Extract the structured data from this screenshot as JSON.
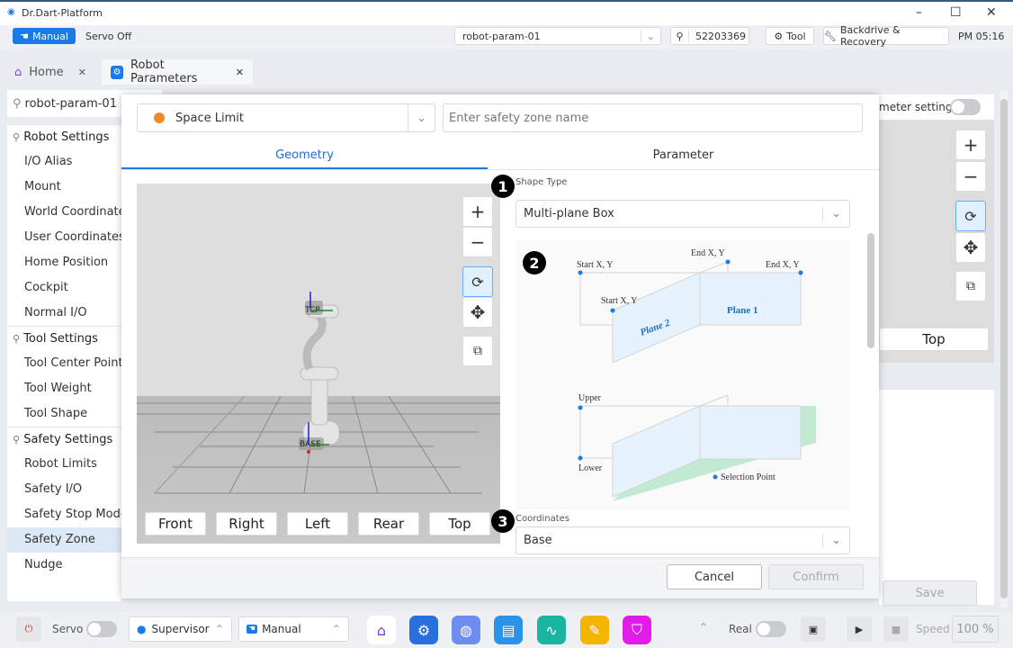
{
  "app": {
    "title": "Dr.Dart-Platform"
  },
  "toolbar": {
    "mode": "Manual",
    "servo_status": "Servo Off",
    "robot_select": "robot-param-01",
    "serial": "52203369",
    "tool": "Tool",
    "backdrive": "Backdrive & Recovery",
    "time": "PM 05:16"
  },
  "tabs": [
    {
      "label": "Home"
    },
    {
      "label": "Robot Parameters"
    }
  ],
  "page": {
    "robot_name": "robot-param-01",
    "hint_text": "meter settings.",
    "view_top": "Top",
    "save": "Save"
  },
  "sidebar": {
    "sections": [
      {
        "title": "Robot Settings",
        "items": [
          "I/O Alias",
          "Mount",
          "World Coordinates",
          "User Coordinates",
          "Home Position",
          "Cockpit",
          "Normal I/O"
        ]
      },
      {
        "title": "Tool Settings",
        "items": [
          "Tool Center Point",
          "Tool Weight",
          "Tool Shape"
        ]
      },
      {
        "title": "Safety Settings",
        "items": [
          "Robot Limits",
          "Safety I/O",
          "Safety Stop Modes",
          "Safety Zone",
          "Nudge"
        ]
      }
    ],
    "active": "Safety Zone"
  },
  "modal": {
    "zone_type": "Space Limit",
    "zone_type_color": "#f08a24",
    "zone_name_placeholder": "Enter safety zone name",
    "tabs": [
      "Geometry",
      "Parameter"
    ],
    "active_tab": "Geometry",
    "viewport": {
      "tcp_label": "TCP",
      "base_label": "BASE",
      "views": [
        "Front",
        "Right",
        "Left",
        "Rear",
        "Top"
      ]
    },
    "shape_type_label": "Shape Type",
    "shape_type": "Multi-plane Box",
    "diagram": {
      "start1": "Start X, Y",
      "end1": "End X, Y",
      "end2": "End X, Y",
      "start2": "Start X, Y",
      "plane1": "Plane 1",
      "plane2": "Plane 2",
      "upper": "Upper",
      "lower": "Lower",
      "selection": "Selection Point"
    },
    "coordinates_label": "Coordinates",
    "coordinates": "Base",
    "badges": [
      "1",
      "2",
      "3"
    ],
    "cancel": "Cancel",
    "confirm": "Confirm"
  },
  "bottom": {
    "servo": "Servo",
    "role": "Supervisor",
    "mode": "Manual",
    "real": "Real",
    "speed": "Speed",
    "speed_value": "100 %"
  },
  "colors": {
    "accent": "#1a7be8",
    "active_bg": "#dce8f6"
  }
}
